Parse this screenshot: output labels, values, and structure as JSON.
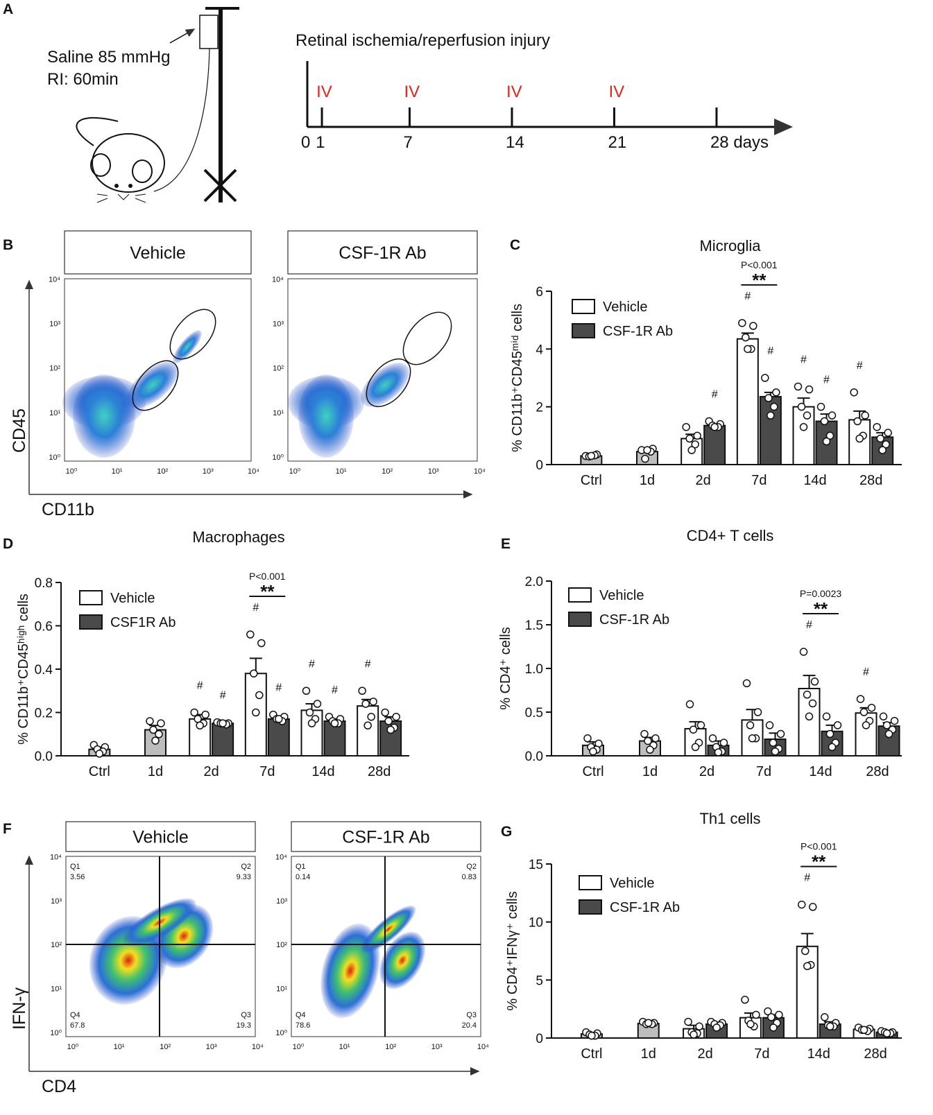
{
  "panel_a": {
    "label": "A",
    "pressure": "Saline 85 mmHg",
    "duration": "RI: 60min",
    "timeline_title": "Retinal ischemia/reperfusion injury",
    "ticks": [
      0,
      1,
      7,
      14,
      21,
      {
        "value": 28,
        "label": "28 days"
      }
    ],
    "iv_days": [
      1,
      7,
      14,
      21
    ],
    "iv_labels": [
      "IV",
      "IV",
      "IV",
      "IV"
    ]
  },
  "panel_b": {
    "label": "B",
    "headers": [
      "Vehicle",
      "CSF-1R Ab"
    ],
    "ylabel": "CD45",
    "xlabel": "CD11b",
    "ticks": [
      "10⁰",
      "10¹",
      "10²",
      "10³",
      "10⁴"
    ]
  },
  "panel_f": {
    "label": "F",
    "ylabel": "IFN-γ",
    "xlabel": "CD4",
    "ticks": [
      "10⁰",
      "10¹",
      "10²",
      "10³",
      "10⁴"
    ],
    "plots": [
      {
        "header": "Vehicle",
        "quadrants": [
          {
            "name": "Q1",
            "value": 3.56
          },
          {
            "name": "Q2",
            "value": 9.33
          },
          {
            "name": "Q4",
            "value": 67.8
          },
          {
            "name": "Q3",
            "value": 19.3
          }
        ]
      },
      {
        "header": "CSF-1R Ab",
        "quadrants": [
          {
            "name": "Q1",
            "value": 0.14
          },
          {
            "name": "Q2",
            "value": 0.83
          },
          {
            "name": "Q4",
            "value": 78.6
          },
          {
            "name": "Q3",
            "value": 20.4
          }
        ]
      }
    ]
  },
  "chart_data": [
    {
      "type": "bar",
      "panel_label": "C",
      "title": "Microglia",
      "ylabel": "% CD11b⁺CD45ᵐⁱᵈ cells",
      "categories": [
        "Ctrl",
        "1d",
        "2d",
        "7d",
        "14d",
        "28d"
      ],
      "ylim": [
        0,
        6
      ],
      "yticks": [
        0,
        2,
        4,
        6
      ],
      "series": [
        {
          "color": "#bdbdbd",
          "values": [
            0.3,
            0.45,
            null,
            null,
            null,
            null
          ],
          "errors": [
            0.03,
            0.1,
            null,
            null,
            null,
            null
          ],
          "points": [
            [
              0.3,
              0.35,
              0.28,
              0.32,
              0.3
            ],
            [
              0.5,
              0.55,
              0.2,
              0.45,
              0.5
            ],
            null,
            null,
            null,
            null
          ]
        },
        {
          "name": "Vehicle",
          "color": "#ffffff",
          "values": [
            null,
            null,
            0.9,
            4.35,
            2.0,
            1.55
          ],
          "errors": [
            null,
            null,
            0.15,
            0.2,
            0.3,
            0.3
          ],
          "points": [
            null,
            null,
            [
              1.3,
              1.0,
              0.9,
              0.7,
              0.5
            ],
            [
              4.9,
              4.8,
              4.4,
              4.0,
              4.0
            ],
            [
              2.7,
              2.6,
              2.0,
              1.7,
              1.3
            ],
            [
              2.5,
              1.7,
              1.5,
              1.0,
              0.9
            ]
          ],
          "flags": [
            null,
            null,
            null,
            "#",
            "#",
            "#"
          ]
        },
        {
          "name": "CSF-1R Ab",
          "color": "#4a4a4a",
          "values": [
            null,
            null,
            1.35,
            2.35,
            1.5,
            0.95
          ],
          "errors": [
            null,
            null,
            0.05,
            0.15,
            0.25,
            0.15
          ],
          "points": [
            null,
            null,
            [
              1.5,
              1.4,
              1.35,
              1.3,
              1.3
            ],
            [
              3.0,
              2.5,
              2.3,
              2.0,
              1.7
            ],
            [
              2.0,
              1.7,
              1.5,
              1.0,
              0.8
            ],
            [
              1.3,
              1.1,
              0.9,
              0.7,
              0.5
            ]
          ],
          "flags": [
            null,
            null,
            "#",
            "#",
            "#",
            null
          ]
        }
      ],
      "annotations": [
        {
          "category": "7d",
          "text": "P<0.001",
          "stars": "**"
        }
      ]
    },
    {
      "type": "bar",
      "panel_label": "D",
      "title": "Macrophages",
      "ylabel": "% CD11b⁺CD45ʰⁱᵍʰ cells",
      "categories": [
        "Ctrl",
        "1d",
        "2d",
        "7d",
        "14d",
        "28d"
      ],
      "ylim": [
        0,
        0.8
      ],
      "yticks": [
        {
          "value": 0,
          "label": "0.0"
        },
        0.2,
        0.4,
        0.6,
        0.8
      ],
      "series": [
        {
          "color": "#bdbdbd",
          "values": [
            0.03,
            0.12,
            null,
            null,
            null,
            null
          ],
          "errors": [
            0.01,
            0.02,
            null,
            null,
            null,
            null
          ],
          "points": [
            [
              0.05,
              0.04,
              0.03,
              0.02,
              0.01
            ],
            [
              0.16,
              0.15,
              0.12,
              0.1,
              0.07
            ],
            null,
            null,
            null,
            null
          ]
        },
        {
          "name": "Vehicle",
          "color": "#ffffff",
          "values": [
            null,
            null,
            0.17,
            0.38,
            0.21,
            0.23
          ],
          "errors": [
            null,
            null,
            0.02,
            0.07,
            0.03,
            0.03
          ],
          "points": [
            null,
            null,
            [
              0.2,
              0.19,
              0.17,
              0.15,
              0.14
            ],
            [
              0.56,
              0.52,
              0.38,
              0.28,
              0.2
            ],
            [
              0.3,
              0.24,
              0.2,
              0.17,
              0.15
            ],
            [
              0.3,
              0.25,
              0.24,
              0.18,
              0.14
            ]
          ],
          "flags": [
            null,
            null,
            "#",
            "#",
            "#",
            "#"
          ]
        },
        {
          "name": "CSF1R Ab",
          "color": "#4a4a4a",
          "values": [
            null,
            null,
            0.15,
            0.17,
            0.16,
            0.16
          ],
          "errors": [
            null,
            null,
            0.005,
            0.01,
            0.01,
            0.02
          ],
          "points": [
            null,
            null,
            [
              0.155,
              0.15,
              0.15,
              0.145,
              0.15
            ],
            [
              0.19,
              0.18,
              0.17,
              0.16,
              0.17
            ],
            [
              0.18,
              0.17,
              0.16,
              0.15,
              0.15
            ],
            [
              0.2,
              0.18,
              0.16,
              0.13,
              0.12
            ]
          ],
          "flags": [
            null,
            null,
            "#",
            "#",
            "#",
            null
          ]
        }
      ],
      "annotations": [
        {
          "category": "7d",
          "text": "P<0.001",
          "stars": "**"
        }
      ]
    },
    {
      "type": "bar",
      "panel_label": "E",
      "title": "CD4+ T cells",
      "ylabel": "% CD4⁺ cells",
      "categories": [
        "Ctrl",
        "1d",
        "2d",
        "7d",
        "14d",
        "28d"
      ],
      "ylim": [
        0,
        2
      ],
      "yticks": [
        {
          "value": 0,
          "label": "0.0"
        },
        0.5,
        {
          "value": 1,
          "label": "1.0"
        },
        1.5,
        {
          "value": 2,
          "label": "2.0"
        }
      ],
      "series": [
        {
          "color": "#bdbdbd",
          "values": [
            0.12,
            0.17,
            null,
            null,
            null,
            null
          ],
          "errors": [
            0.04,
            0.04,
            null,
            null,
            null,
            null
          ],
          "points": [
            [
              0.2,
              0.14,
              0.1,
              0.07,
              0.05
            ],
            [
              0.25,
              0.2,
              0.17,
              0.12,
              0.07
            ],
            null,
            null,
            null,
            null
          ]
        },
        {
          "name": "Vehicle",
          "color": "#ffffff",
          "values": [
            null,
            null,
            0.31,
            0.41,
            0.77,
            0.49
          ],
          "errors": [
            null,
            null,
            0.08,
            0.12,
            0.15,
            0.06
          ],
          "points": [
            null,
            null,
            [
              0.59,
              0.35,
              0.3,
              0.15,
              0.1
            ],
            [
              0.83,
              0.5,
              0.35,
              0.2,
              0.2
            ],
            [
              1.19,
              0.85,
              0.7,
              0.6,
              0.45
            ],
            [
              0.65,
              0.55,
              0.5,
              0.4,
              0.35
            ]
          ],
          "flags": [
            null,
            null,
            null,
            null,
            "#",
            "#"
          ]
        },
        {
          "name": "CSF-1R Ab",
          "color": "#4a4a4a",
          "values": [
            null,
            null,
            0.12,
            0.19,
            0.28,
            0.34
          ],
          "errors": [
            null,
            null,
            0.05,
            0.07,
            0.07,
            0.04
          ],
          "points": [
            null,
            null,
            [
              0.2,
              0.15,
              0.1,
              0.05,
              0.04
            ],
            [
              0.35,
              0.25,
              0.15,
              0.08,
              0.05
            ],
            [
              0.45,
              0.35,
              0.25,
              0.15,
              0.1
            ],
            [
              0.45,
              0.4,
              0.35,
              0.3,
              0.25
            ]
          ],
          "flags": [
            null,
            null,
            null,
            null,
            null,
            null
          ]
        }
      ],
      "annotations": [
        {
          "category": "14d",
          "text": "P=0.0023",
          "stars": "**"
        }
      ]
    },
    {
      "type": "bar",
      "panel_label": "G",
      "title": "Th1 cells",
      "ylabel": "% CD4⁺IFNγ⁺ cells",
      "categories": [
        "Ctrl",
        "1d",
        "2d",
        "7d",
        "14d",
        "28d"
      ],
      "ylim": [
        0,
        15
      ],
      "yticks": [
        0,
        5,
        10,
        15
      ],
      "series": [
        {
          "color": "#bdbdbd",
          "values": [
            0.35,
            1.25,
            null,
            null,
            null,
            null
          ],
          "errors": [
            0.1,
            0.05,
            null,
            null,
            null,
            null
          ],
          "points": [
            [
              0.5,
              0.4,
              0.3,
              0.2,
              0.2
            ],
            [
              1.4,
              1.3,
              1.2,
              1.2,
              1.3
            ],
            null,
            null,
            null,
            null
          ]
        },
        {
          "name": "Vehicle",
          "color": "#ffffff",
          "values": [
            null,
            null,
            0.8,
            1.75,
            7.9,
            0.75
          ],
          "errors": [
            null,
            null,
            0.3,
            0.4,
            1.1,
            0.1
          ],
          "points": [
            null,
            null,
            [
              1.4,
              1.0,
              0.5,
              0.4,
              0.3
            ],
            [
              3.3,
              2.0,
              1.5,
              1.0,
              1.2
            ],
            [
              11.5,
              11.3,
              7.5,
              6.3,
              6.2
            ],
            [
              0.9,
              0.8,
              0.7,
              0.6,
              0.7
            ]
          ],
          "flags": [
            null,
            null,
            null,
            null,
            "#",
            null
          ]
        },
        {
          "name": "CSF-1R Ab",
          "color": "#4a4a4a",
          "values": [
            null,
            null,
            1.2,
            1.75,
            1.2,
            0.5
          ],
          "errors": [
            null,
            null,
            0.15,
            0.25,
            0.2,
            0.05
          ],
          "points": [
            null,
            null,
            [
              1.4,
              1.3,
              1.2,
              1.1,
              0.9
            ],
            [
              2.3,
              2.0,
              1.8,
              1.3,
              0.9
            ],
            [
              1.8,
              1.3,
              1.1,
              1.0,
              1.0
            ],
            [
              0.6,
              0.5,
              0.5,
              0.4,
              0.4
            ]
          ],
          "flags": [
            null,
            null,
            null,
            null,
            null,
            null
          ]
        }
      ],
      "annotations": [
        {
          "category": "14d",
          "text": "P<0.001",
          "stars": "**"
        }
      ]
    }
  ]
}
